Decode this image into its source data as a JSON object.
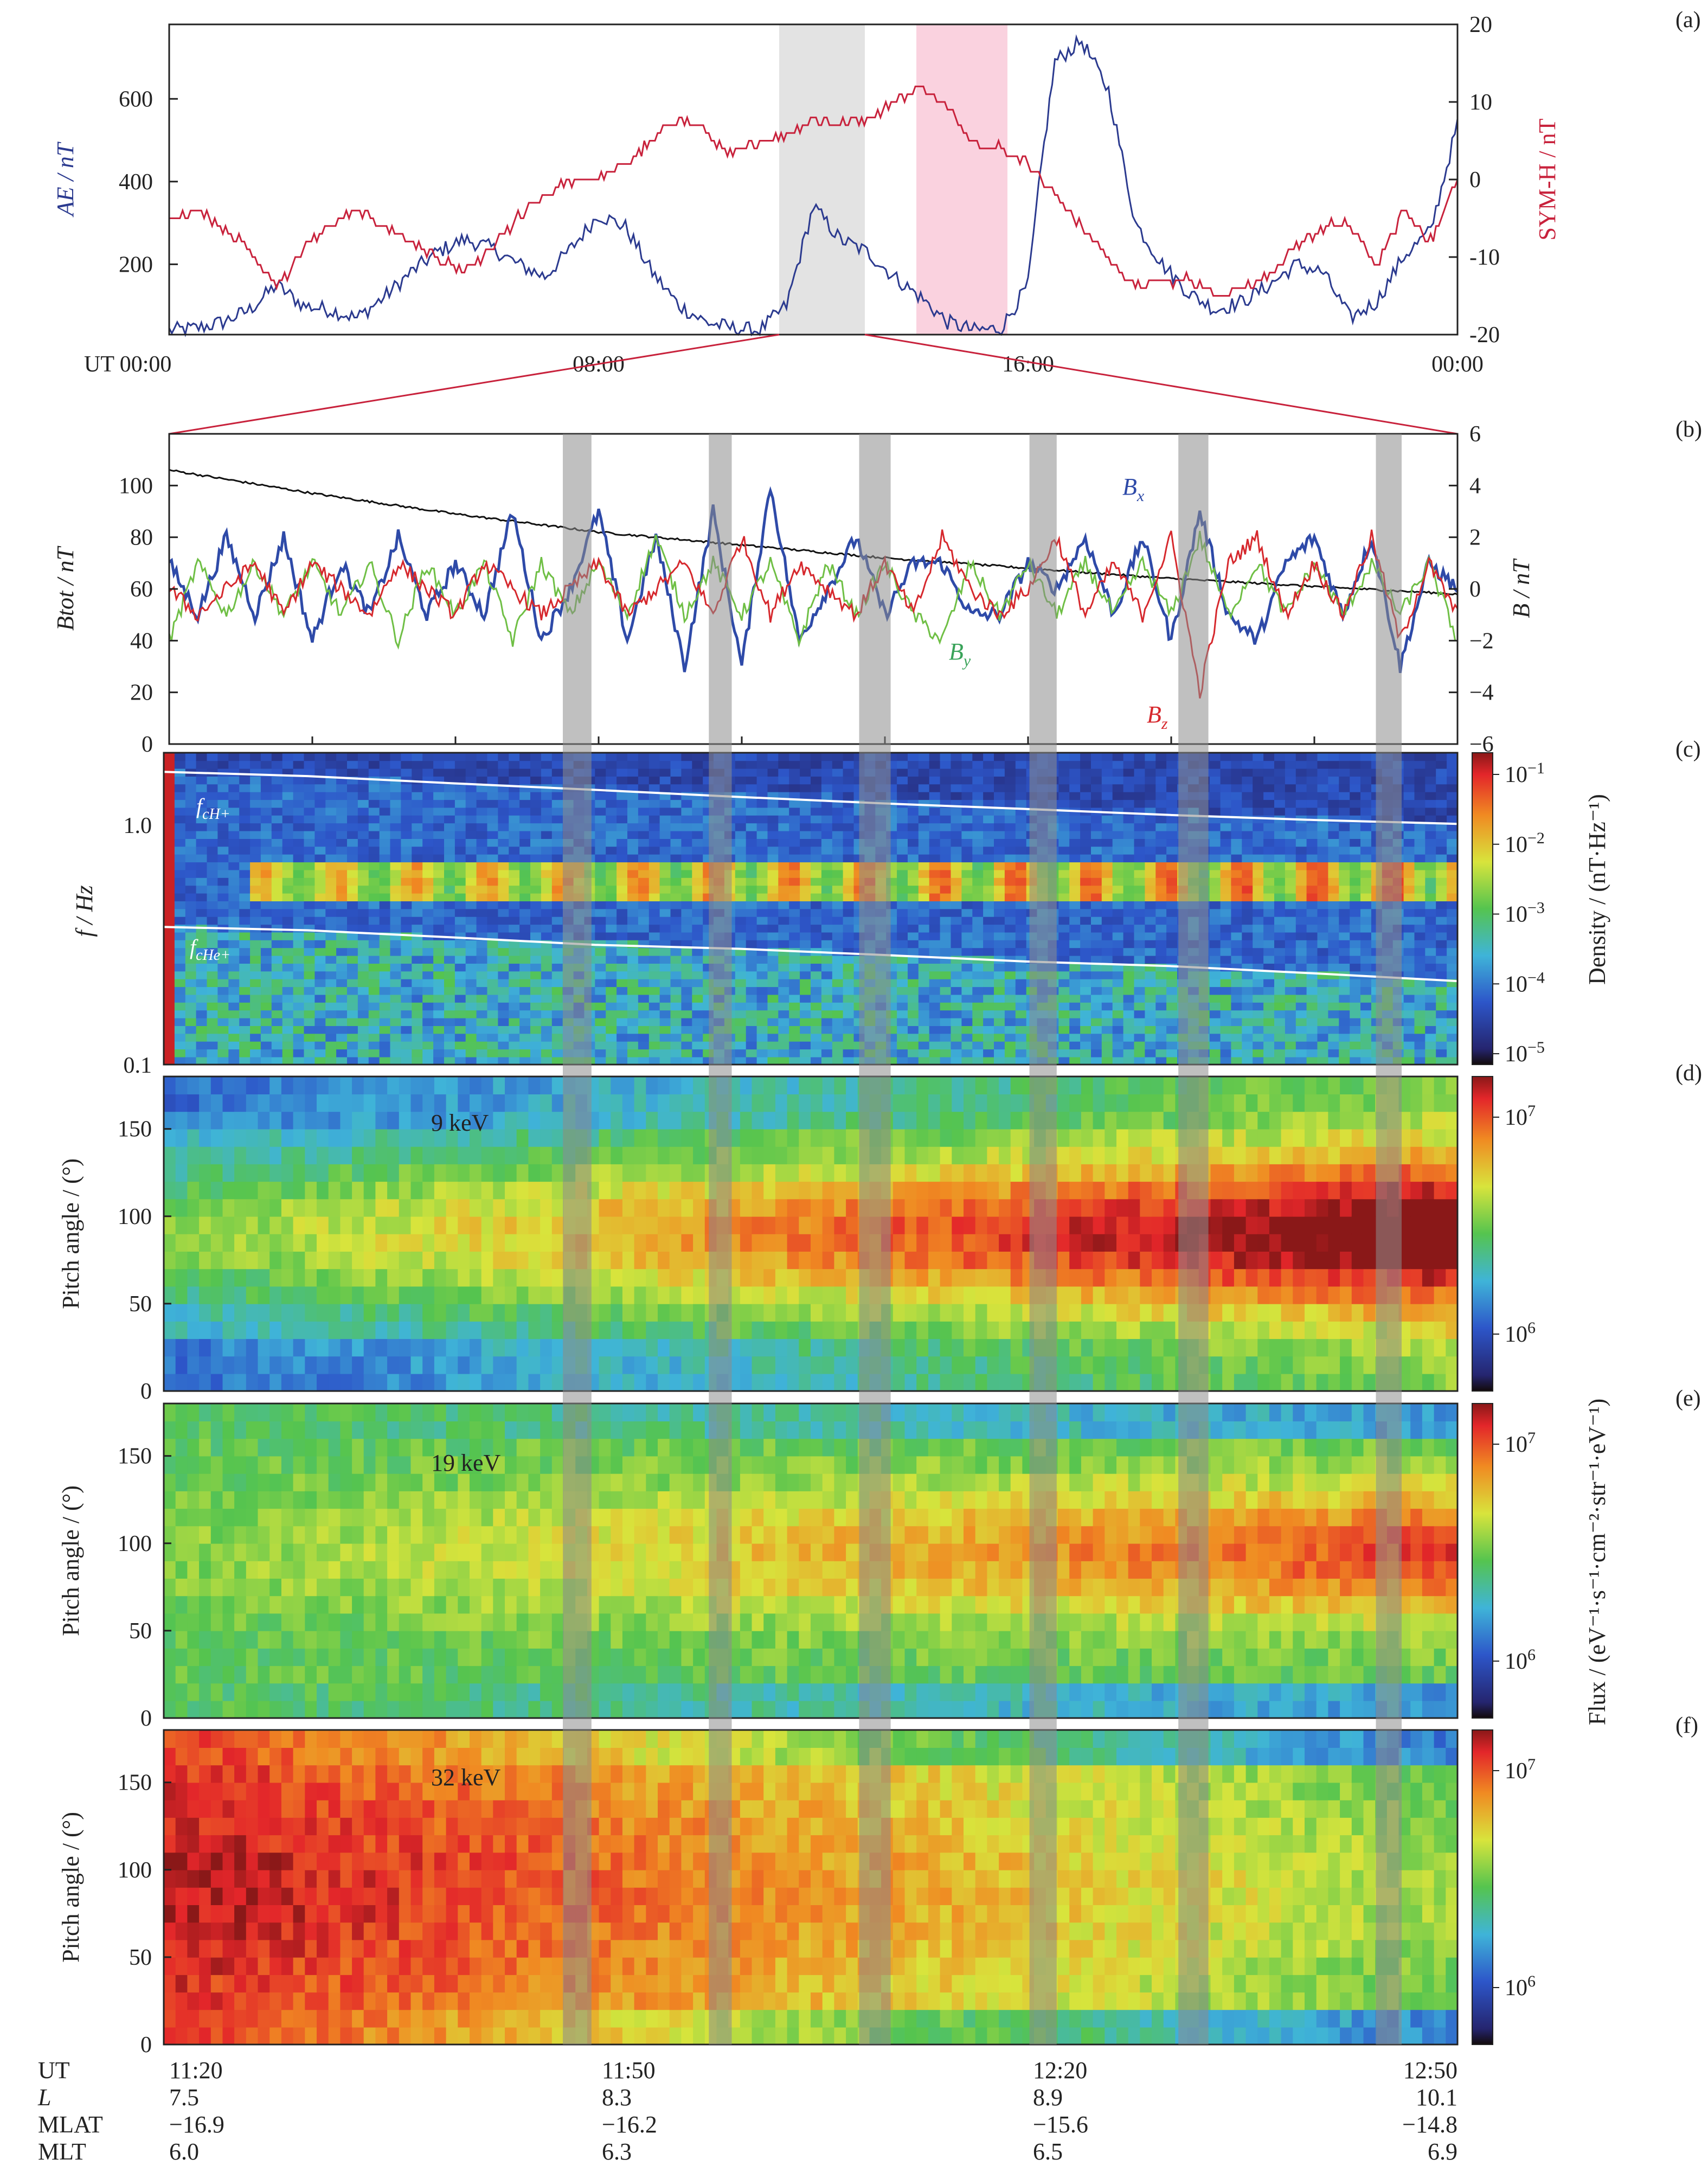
{
  "figure": {
    "panel_letters": [
      "(a)",
      "(b)",
      "(c)",
      "(d)",
      "(e)",
      "(f)"
    ],
    "colorbar_labels": {
      "density": "Density / (nT·Hz⁻¹)",
      "flux": "Flux / (eV⁻¹·s⁻¹·cm⁻²·str⁻¹·eV⁻¹)"
    },
    "bottom_table": {
      "row_labels": [
        "UT",
        "L",
        "MLAT",
        "MLT"
      ],
      "columns": [
        {
          "UT": "11:20",
          "L": "7.5",
          "MLAT": "−16.9",
          "MLT": "6.0"
        },
        {
          "UT": "11:50",
          "L": "8.3",
          "MLAT": "−16.2",
          "MLT": "6.3"
        },
        {
          "UT": "12:20",
          "L": "8.9",
          "MLAT": "−15.6",
          "MLT": "6.5"
        },
        {
          "UT": "12:50",
          "L": "10.1",
          "MLAT": "−14.8",
          "MLT": "6.9"
        }
      ]
    }
  },
  "chart_data": [
    {
      "panel": "(a)",
      "type": "line",
      "ylabel_left": "AE / nT",
      "ylabel_right": "SYM-H / nT",
      "x_ticks": [
        "UT 00:00",
        "08:00",
        "16:00",
        "00:00"
      ],
      "xlim_hours": [
        0,
        24
      ],
      "ylim_left": [
        30,
        780
      ],
      "yticks_left": [
        200,
        400,
        600
      ],
      "ylim_right": [
        -20,
        20
      ],
      "yticks_right": [
        -20,
        -10,
        0,
        10,
        20
      ],
      "shaded_intervals_hours": [
        {
          "start": 11.3,
          "end": 12.9,
          "color": "#e3e3e3"
        },
        {
          "start": 13.9,
          "end": 15.6,
          "color": "#fad2df"
        }
      ],
      "series": [
        {
          "name": "AE",
          "axis": "left",
          "color": "#2b3a8f",
          "x": [
            0,
            0.5,
            1,
            1.5,
            2,
            2.5,
            3,
            3.5,
            4,
            4.5,
            5,
            5.5,
            6,
            6.5,
            7,
            7.5,
            8,
            8.5,
            9,
            9.5,
            10,
            10.5,
            11,
            11.5,
            12,
            12.25,
            12.5,
            13,
            13.5,
            14,
            14.5,
            15,
            15.5,
            16,
            16.25,
            16.5,
            17,
            17.5,
            18,
            18.5,
            19,
            19.5,
            20,
            20.5,
            21,
            21.5,
            22,
            22.5,
            23,
            23.5,
            24
          ],
          "y": [
            40,
            45,
            60,
            90,
            150,
            100,
            90,
            70,
            120,
            180,
            230,
            260,
            240,
            200,
            170,
            240,
            320,
            290,
            180,
            100,
            60,
            45,
            40,
            100,
            340,
            300,
            260,
            230,
            170,
            120,
            60,
            40,
            45,
            150,
            440,
            690,
            740,
            620,
            300,
            200,
            130,
            90,
            110,
            150,
            200,
            180,
            70,
            110,
            220,
            280,
            540
          ]
        },
        {
          "name": "SYM-H",
          "axis": "right",
          "color": "#c8223c",
          "x": [
            0,
            0.5,
            1,
            1.5,
            2,
            2.5,
            3,
            3.5,
            4,
            4.5,
            5,
            5.5,
            6,
            6.5,
            7,
            7.5,
            8,
            8.5,
            9,
            9.5,
            10,
            10.5,
            11,
            11.5,
            12,
            12.5,
            13,
            13.5,
            14,
            14.5,
            15,
            15.5,
            16,
            16.5,
            17,
            17.5,
            18,
            18.5,
            19,
            19.5,
            20,
            20.5,
            21,
            21.5,
            22,
            22.5,
            23,
            23.5,
            24
          ],
          "y": [
            -5,
            -4,
            -6,
            -9,
            -14,
            -9,
            -6,
            -4,
            -6,
            -8,
            -10,
            -12,
            -9,
            -5,
            -2,
            0,
            0,
            2,
            5,
            8,
            6,
            3,
            5,
            6,
            8,
            7,
            8,
            10,
            12,
            9,
            5,
            4,
            2,
            -2,
            -6,
            -10,
            -14,
            -13,
            -13,
            -15,
            -14,
            -12,
            -9,
            -6,
            -6,
            -11,
            -4,
            -8,
            0
          ]
        }
      ]
    },
    {
      "panel": "(b)",
      "type": "line",
      "ylabel_left": "Btot / nT",
      "ylabel_right": "B / nT",
      "x_range_UT": [
        "11:20",
        "12:50"
      ],
      "xlim_minutes": [
        0,
        90
      ],
      "ylim_left": [
        0,
        120
      ],
      "yticks_left": [
        0,
        20,
        40,
        60,
        80,
        100
      ],
      "ylim_right": [
        -6,
        6
      ],
      "yticks_right": [
        -6,
        -4,
        -2,
        0,
        2,
        4,
        6
      ],
      "shaded_intervals_minutes": [
        [
          27.5,
          29.5
        ],
        [
          37.7,
          39.3
        ],
        [
          48.2,
          50.4
        ],
        [
          60.1,
          62.0
        ],
        [
          70.5,
          72.6
        ],
        [
          84.3,
          86.1
        ]
      ],
      "labels": {
        "Bx": "B",
        "Bx_sub": "x",
        "By": "B",
        "By_sub": "y",
        "Bz": "B",
        "Bz_sub": "z"
      },
      "series": [
        {
          "name": "Btot",
          "axis": "left",
          "color": "#111111",
          "x": [
            0,
            10,
            20,
            30,
            40,
            50,
            60,
            70,
            80,
            90
          ],
          "y": [
            106,
            97,
            89,
            82,
            77,
            72,
            68,
            64,
            61,
            58
          ]
        },
        {
          "name": "Bx",
          "axis": "right",
          "color": "#2e4aa8",
          "x": [
            0,
            2,
            4,
            6,
            8,
            10,
            12,
            14,
            16,
            18,
            20,
            22,
            24,
            26,
            28,
            30,
            32,
            34,
            36,
            38,
            40,
            42,
            44,
            46,
            48,
            50,
            52,
            54,
            56,
            58,
            60,
            62,
            64,
            66,
            68,
            70,
            72,
            74,
            76,
            78,
            80,
            82,
            84,
            86,
            88,
            90
          ],
          "y": [
            1,
            -1,
            2,
            -1,
            2,
            -2,
            1,
            -1,
            2,
            -1,
            1,
            -1,
            3,
            -2,
            0,
            3,
            -2,
            2,
            -3,
            3,
            -3,
            4,
            -2,
            0,
            2,
            -1,
            1,
            1,
            -1,
            -1,
            1,
            0,
            2,
            -1,
            2,
            -2,
            3,
            -1,
            -2,
            1,
            2,
            -1,
            2,
            -3,
            1,
            0
          ]
        },
        {
          "name": "By",
          "axis": "right",
          "color": "#6fbf45",
          "x": [
            0,
            2,
            4,
            6,
            8,
            10,
            12,
            14,
            16,
            18,
            20,
            22,
            24,
            26,
            28,
            30,
            32,
            34,
            36,
            38,
            40,
            42,
            44,
            46,
            48,
            50,
            52,
            54,
            56,
            58,
            60,
            62,
            64,
            66,
            68,
            70,
            72,
            74,
            76,
            78,
            80,
            82,
            84,
            86,
            88,
            90
          ],
          "y": [
            -2,
            1,
            -1,
            1,
            -1,
            1,
            -1,
            1,
            -2,
            1,
            -1,
            1,
            -2,
            1,
            -1,
            1,
            -1,
            2,
            -1,
            1,
            -1,
            1,
            -2,
            1,
            -1,
            1,
            -1,
            -2,
            1,
            -1,
            1,
            -1,
            1,
            -1,
            1,
            -1,
            2,
            -1,
            1,
            -1,
            1,
            -1,
            1,
            -1,
            1,
            -2
          ]
        },
        {
          "name": "Bz",
          "axis": "right",
          "color": "#d6282d",
          "x": [
            0,
            2,
            4,
            6,
            8,
            10,
            12,
            14,
            16,
            18,
            20,
            22,
            24,
            26,
            28,
            30,
            32,
            34,
            36,
            38,
            40,
            42,
            44,
            46,
            48,
            50,
            52,
            54,
            56,
            58,
            60,
            62,
            64,
            66,
            68,
            70,
            72,
            74,
            76,
            78,
            80,
            82,
            84,
            86,
            88,
            90
          ],
          "y": [
            0,
            -1,
            0,
            1,
            -1,
            1,
            0,
            -1,
            1,
            0,
            -1,
            1,
            0,
            -1,
            0,
            1,
            -1,
            0,
            1,
            -1,
            2,
            -1,
            1,
            0,
            -1,
            1,
            -1,
            2,
            0,
            -1,
            0,
            2,
            -1,
            1,
            -1,
            2,
            -4,
            1,
            2,
            -1,
            1,
            -1,
            2,
            -2,
            1,
            -1
          ]
        }
      ]
    },
    {
      "panel": "(c)",
      "type": "heatmap",
      "ylabel": "f / Hz",
      "yscale": "log",
      "ylim": [
        0.1,
        1.6
      ],
      "yticks": [
        "0.1",
        "1.0"
      ],
      "line_labels": {
        "fcH_main": "f",
        "fcH_sub": "cH+",
        "fcHe_main": "f",
        "fcHe_sub": "cHe+"
      },
      "colorbar_ticks": [
        {
          "base": "10",
          "exp": "−1"
        },
        {
          "base": "10",
          "exp": "−2"
        },
        {
          "base": "10",
          "exp": "−3"
        },
        {
          "base": "10",
          "exp": "−4"
        },
        {
          "base": "10",
          "exp": "−5"
        }
      ],
      "fcH_line_hz": [
        1.35,
        1.3,
        1.22,
        1.15,
        1.08,
        1.02,
        0.97,
        0.92,
        0.88,
        0.85
      ],
      "fcHe_line_hz": [
        0.34,
        0.33,
        0.31,
        0.29,
        0.28,
        0.265,
        0.25,
        0.24,
        0.225,
        0.21
      ],
      "emission_band_hz": [
        0.42,
        0.62
      ]
    },
    {
      "panel": "(d)",
      "type": "heatmap",
      "energy": "9 keV",
      "ylabel": "Pitch angle / (°)",
      "ylim": [
        0,
        180
      ],
      "yticks": [
        0,
        50,
        100,
        150
      ],
      "colorbar_ticks": [
        {
          "base": "10",
          "exp": "7"
        },
        {
          "base": "10",
          "exp": "6"
        }
      ]
    },
    {
      "panel": "(e)",
      "type": "heatmap",
      "energy": "19 keV",
      "ylabel": "Pitch angle / (°)",
      "ylim": [
        0,
        180
      ],
      "yticks": [
        0,
        50,
        100,
        150
      ],
      "colorbar_ticks": [
        {
          "base": "10",
          "exp": "7"
        },
        {
          "base": "10",
          "exp": "6"
        }
      ]
    },
    {
      "panel": "(f)",
      "type": "heatmap",
      "energy": "32 keV",
      "ylabel": "Pitch angle / (°)",
      "ylim": [
        0,
        180
      ],
      "yticks": [
        0,
        50,
        100,
        150
      ],
      "colorbar_ticks": [
        {
          "base": "10",
          "exp": "7"
        },
        {
          "base": "10",
          "exp": "6"
        }
      ]
    }
  ]
}
